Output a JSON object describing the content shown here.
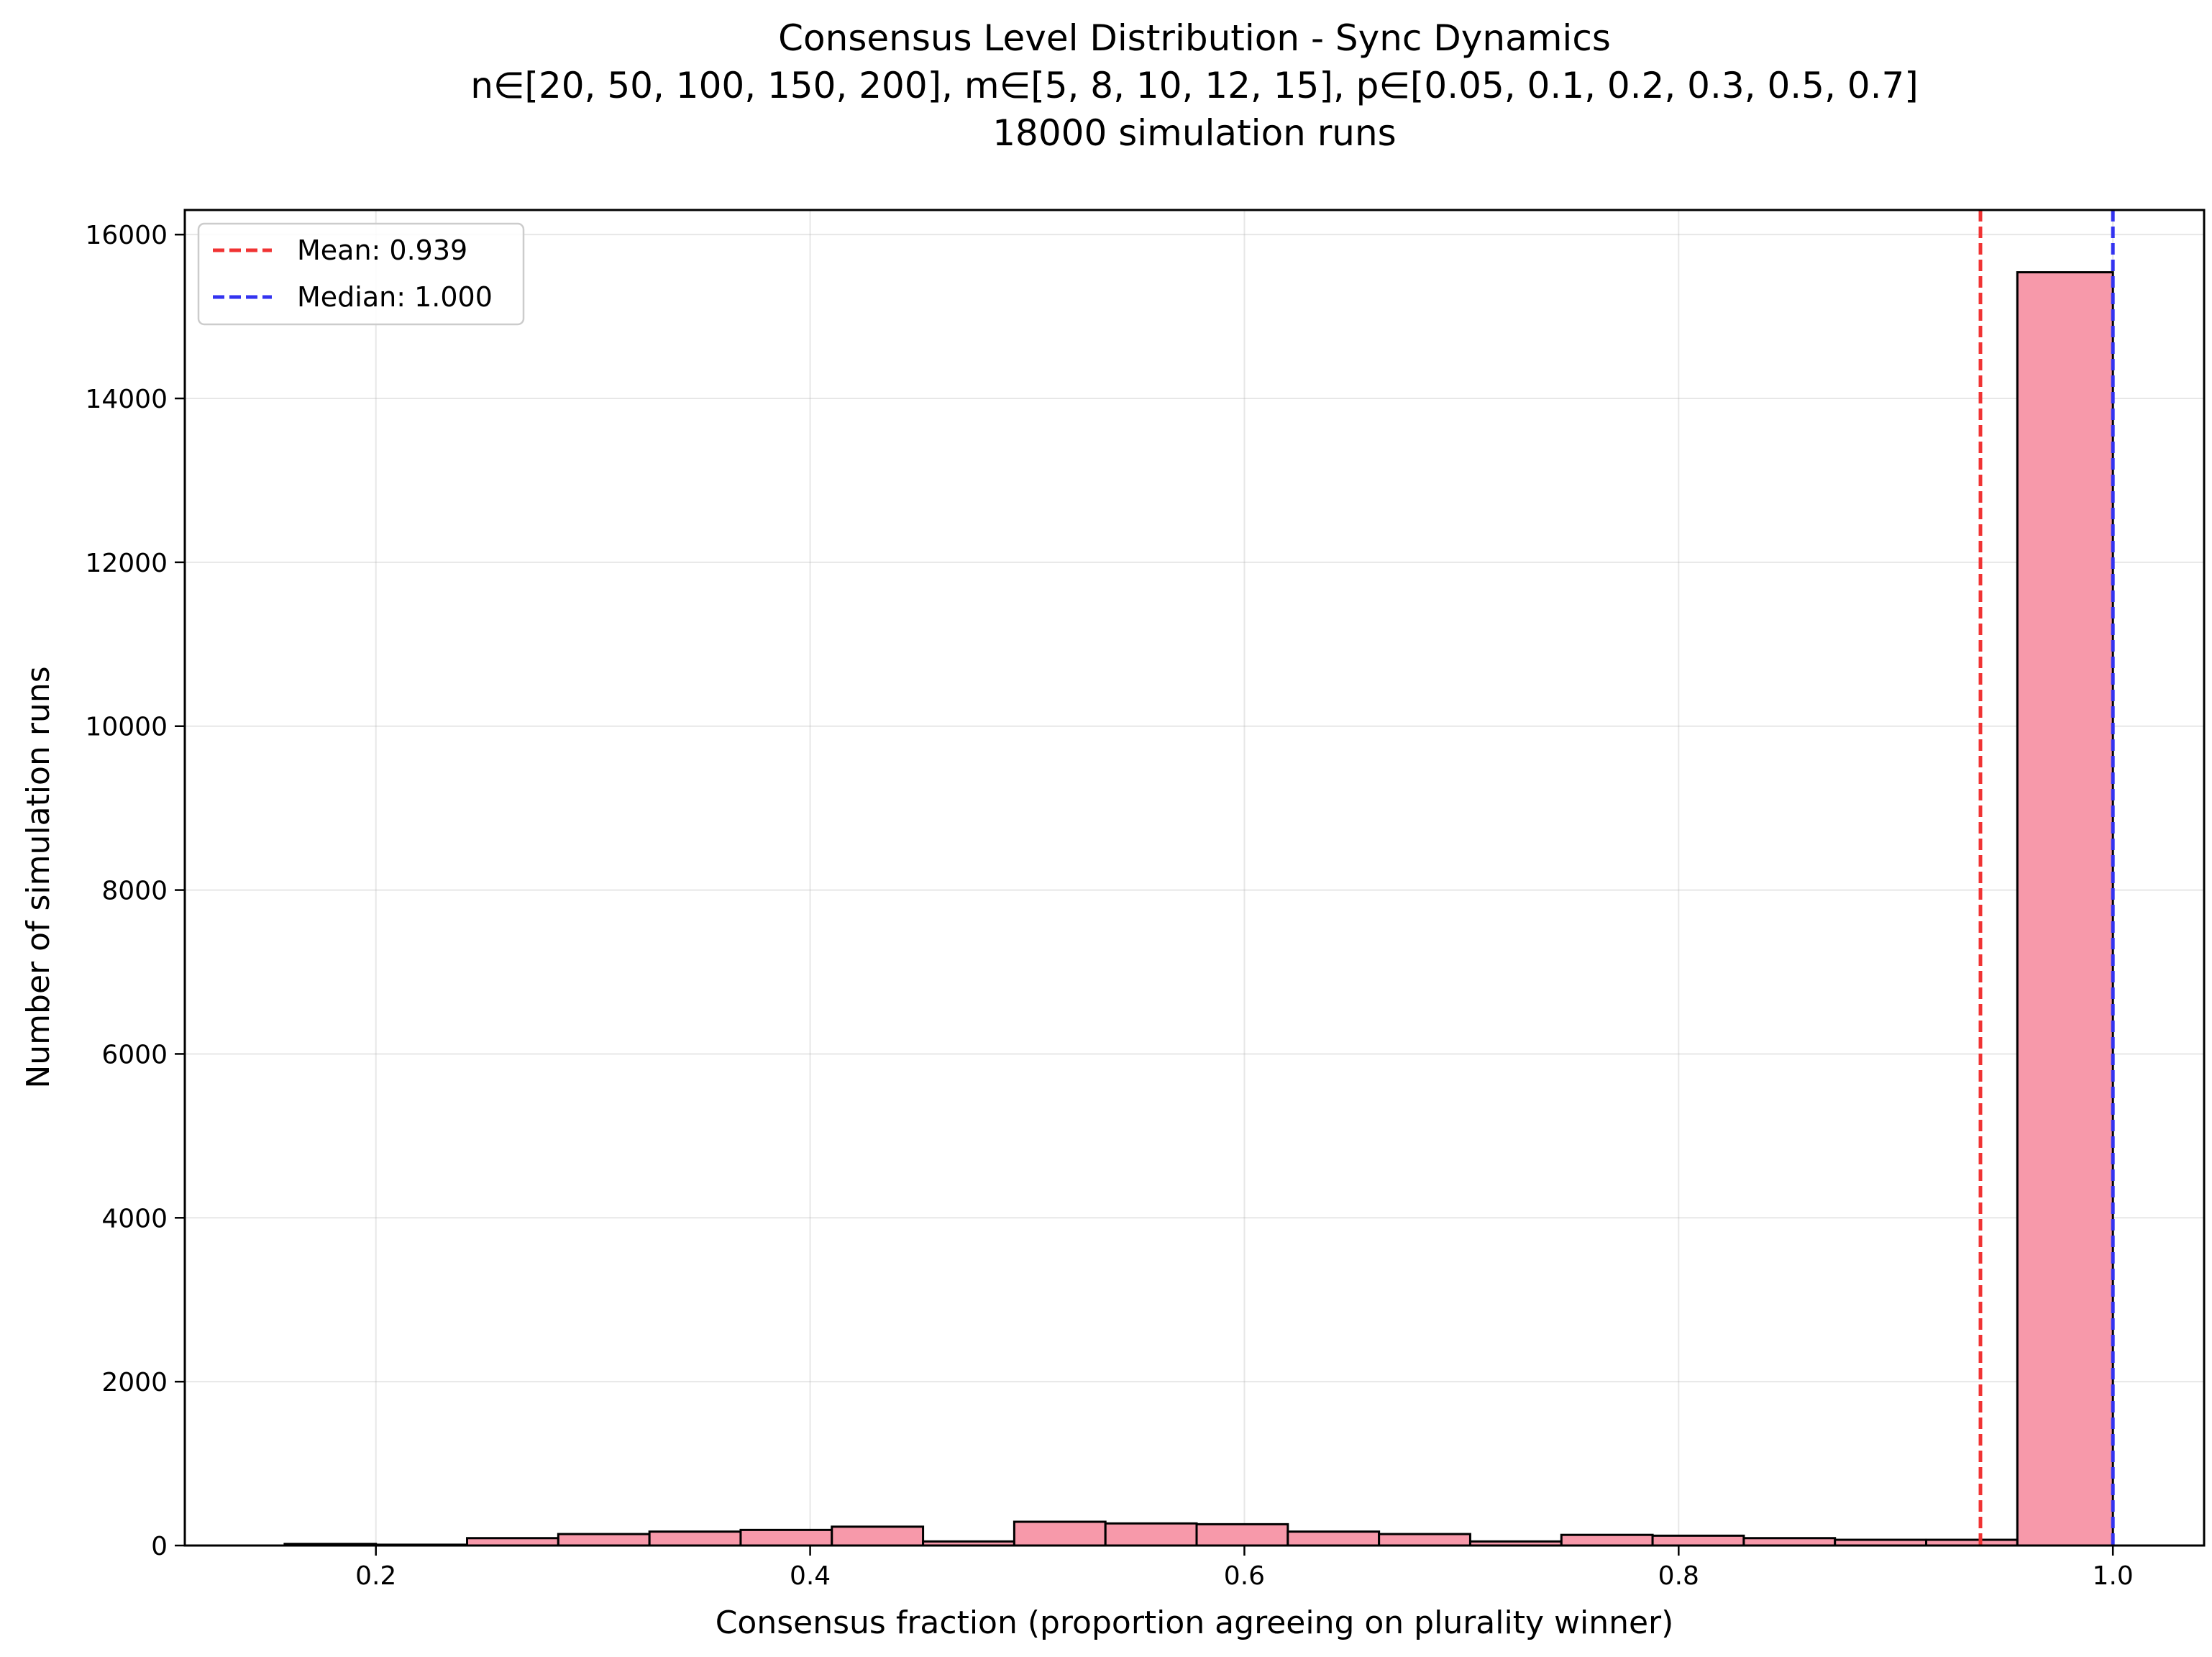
{
  "chart_data": {
    "type": "bar",
    "title_lines": [
      "Consensus Level Distribution - Sync Dynamics",
      "n∈[20, 50, 100, 150, 200], m∈[5, 8, 10, 12, 15], p∈[0.05, 0.1, 0.2, 0.3, 0.5, 0.7]",
      "18000 simulation runs"
    ],
    "xlabel": "Consensus fraction (proportion agreeing on plurality winner)",
    "ylabel": "Number of simulation runs",
    "xlim": [
      0.112,
      1.042
    ],
    "ylim": [
      0,
      16300
    ],
    "xticks": [
      0.2,
      0.4,
      0.6,
      0.8,
      1.0
    ],
    "xtick_labels": [
      "0.2",
      "0.4",
      "0.6",
      "0.8",
      "1.0"
    ],
    "yticks": [
      0,
      2000,
      4000,
      6000,
      8000,
      10000,
      12000,
      14000,
      16000
    ],
    "ytick_labels": [
      "0",
      "2000",
      "4000",
      "6000",
      "8000",
      "10000",
      "12000",
      "14000",
      "16000"
    ],
    "grid": true,
    "bar_color": "#f799aa",
    "bar_edge_color": "#000000",
    "bins": [
      {
        "x0": 0.158,
        "x1": 0.2,
        "value": 20
      },
      {
        "x0": 0.2,
        "x1": 0.242,
        "value": 10
      },
      {
        "x0": 0.242,
        "x1": 0.284,
        "value": 90
      },
      {
        "x0": 0.284,
        "x1": 0.326,
        "value": 140
      },
      {
        "x0": 0.326,
        "x1": 0.368,
        "value": 170
      },
      {
        "x0": 0.368,
        "x1": 0.41,
        "value": 190
      },
      {
        "x0": 0.41,
        "x1": 0.452,
        "value": 230
      },
      {
        "x0": 0.452,
        "x1": 0.494,
        "value": 50
      },
      {
        "x0": 0.494,
        "x1": 0.536,
        "value": 290
      },
      {
        "x0": 0.536,
        "x1": 0.578,
        "value": 270
      },
      {
        "x0": 0.578,
        "x1": 0.62,
        "value": 260
      },
      {
        "x0": 0.62,
        "x1": 0.662,
        "value": 170
      },
      {
        "x0": 0.662,
        "x1": 0.704,
        "value": 140
      },
      {
        "x0": 0.704,
        "x1": 0.746,
        "value": 50
      },
      {
        "x0": 0.746,
        "x1": 0.788,
        "value": 130
      },
      {
        "x0": 0.788,
        "x1": 0.83,
        "value": 120
      },
      {
        "x0": 0.83,
        "x1": 0.872,
        "value": 90
      },
      {
        "x0": 0.872,
        "x1": 0.914,
        "value": 70
      },
      {
        "x0": 0.914,
        "x1": 0.956,
        "value": 70
      },
      {
        "x0": 0.956,
        "x1": 1.0,
        "value": 15540
      }
    ],
    "reference_lines": [
      {
        "label": "Mean: 0.939",
        "x": 0.939,
        "color": "#f03333"
      },
      {
        "label": "Median: 1.000",
        "x": 1.0,
        "color": "#3333f0"
      }
    ],
    "legend_position": "upper left"
  }
}
